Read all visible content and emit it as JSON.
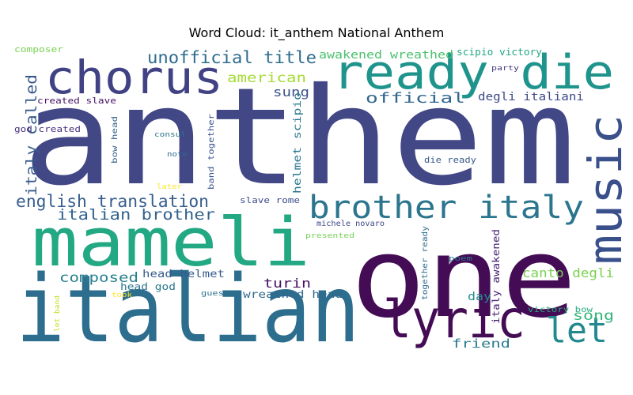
{
  "chart_data": {
    "type": "wordcloud",
    "title": "Word Cloud: it_anthem National Anthem",
    "palette": "viridis",
    "words": [
      {
        "text": "anthem",
        "color": "#424786"
      },
      {
        "text": "one",
        "color": "#440c54"
      },
      {
        "text": "italian",
        "color": "#2d6d8e"
      },
      {
        "text": "mameli",
        "color": "#23a884"
      },
      {
        "text": "chorus",
        "color": "#404284"
      },
      {
        "text": "ready die",
        "color": "#1f948c"
      },
      {
        "text": "lyric",
        "color": "#440c54"
      },
      {
        "text": "music",
        "color": "#3a508b"
      },
      {
        "text": "brother italy",
        "color": "#2b758e"
      },
      {
        "text": "let",
        "color": "#23898e"
      },
      {
        "text": "unofficial title",
        "color": "#2f6c8e"
      },
      {
        "text": "english translation",
        "color": "#365d8d"
      },
      {
        "text": "italian brother",
        "color": "#33628d"
      },
      {
        "text": "italy called",
        "color": "#375a8c"
      },
      {
        "text": "official",
        "color": "#31668e"
      },
      {
        "text": "american",
        "color": "#a5db36"
      },
      {
        "text": "sung",
        "color": "#3a538b"
      },
      {
        "text": "composed",
        "color": "#27808e"
      },
      {
        "text": "song",
        "color": "#32b67a"
      },
      {
        "text": "canto degli",
        "color": "#7ad151"
      },
      {
        "text": "turin",
        "color": "#471365"
      },
      {
        "text": "awakened wreathed",
        "color": "#4ac16d"
      },
      {
        "text": "degli italiani",
        "color": "#3e4989"
      },
      {
        "text": "head helmet",
        "color": "#375b8d"
      },
      {
        "text": "wreathed head",
        "color": "#306a8e"
      },
      {
        "text": "day",
        "color": "#238a8d"
      },
      {
        "text": "friend",
        "color": "#287c8e"
      },
      {
        "text": "helmet scipio",
        "color": "#2a778e"
      },
      {
        "text": "italy awakened",
        "color": "#482475"
      },
      {
        "text": "head god",
        "color": "#2a788e"
      },
      {
        "text": "scipio victory",
        "color": "#22a884"
      },
      {
        "text": "composer",
        "color": "#7ad151"
      },
      {
        "text": "created slave",
        "color": "#471164"
      },
      {
        "text": "god created",
        "color": "#46317e"
      },
      {
        "text": "bow head",
        "color": "#34618d"
      },
      {
        "text": "band together",
        "color": "#3a548c"
      },
      {
        "text": "die ready",
        "color": "#38598c"
      },
      {
        "text": "slave rome",
        "color": "#3d4d8a"
      },
      {
        "text": "michele novaro",
        "color": "#3f4788"
      },
      {
        "text": "together ready",
        "color": "#2f6c8e"
      },
      {
        "text": "victory bow",
        "color": "#29af7f"
      },
      {
        "text": "party",
        "color": "#443a83"
      },
      {
        "text": "consul",
        "color": "#2c738e"
      },
      {
        "text": "note",
        "color": "#31688e"
      },
      {
        "text": "later",
        "color": "#fde725"
      },
      {
        "text": "presented",
        "color": "#75d054"
      },
      {
        "text": "poem",
        "color": "#2a768e"
      },
      {
        "text": "guest",
        "color": "#2b748e"
      },
      {
        "text": "took",
        "color": "#fde725"
      },
      {
        "text": "let band",
        "color": "#c2df23"
      }
    ]
  }
}
